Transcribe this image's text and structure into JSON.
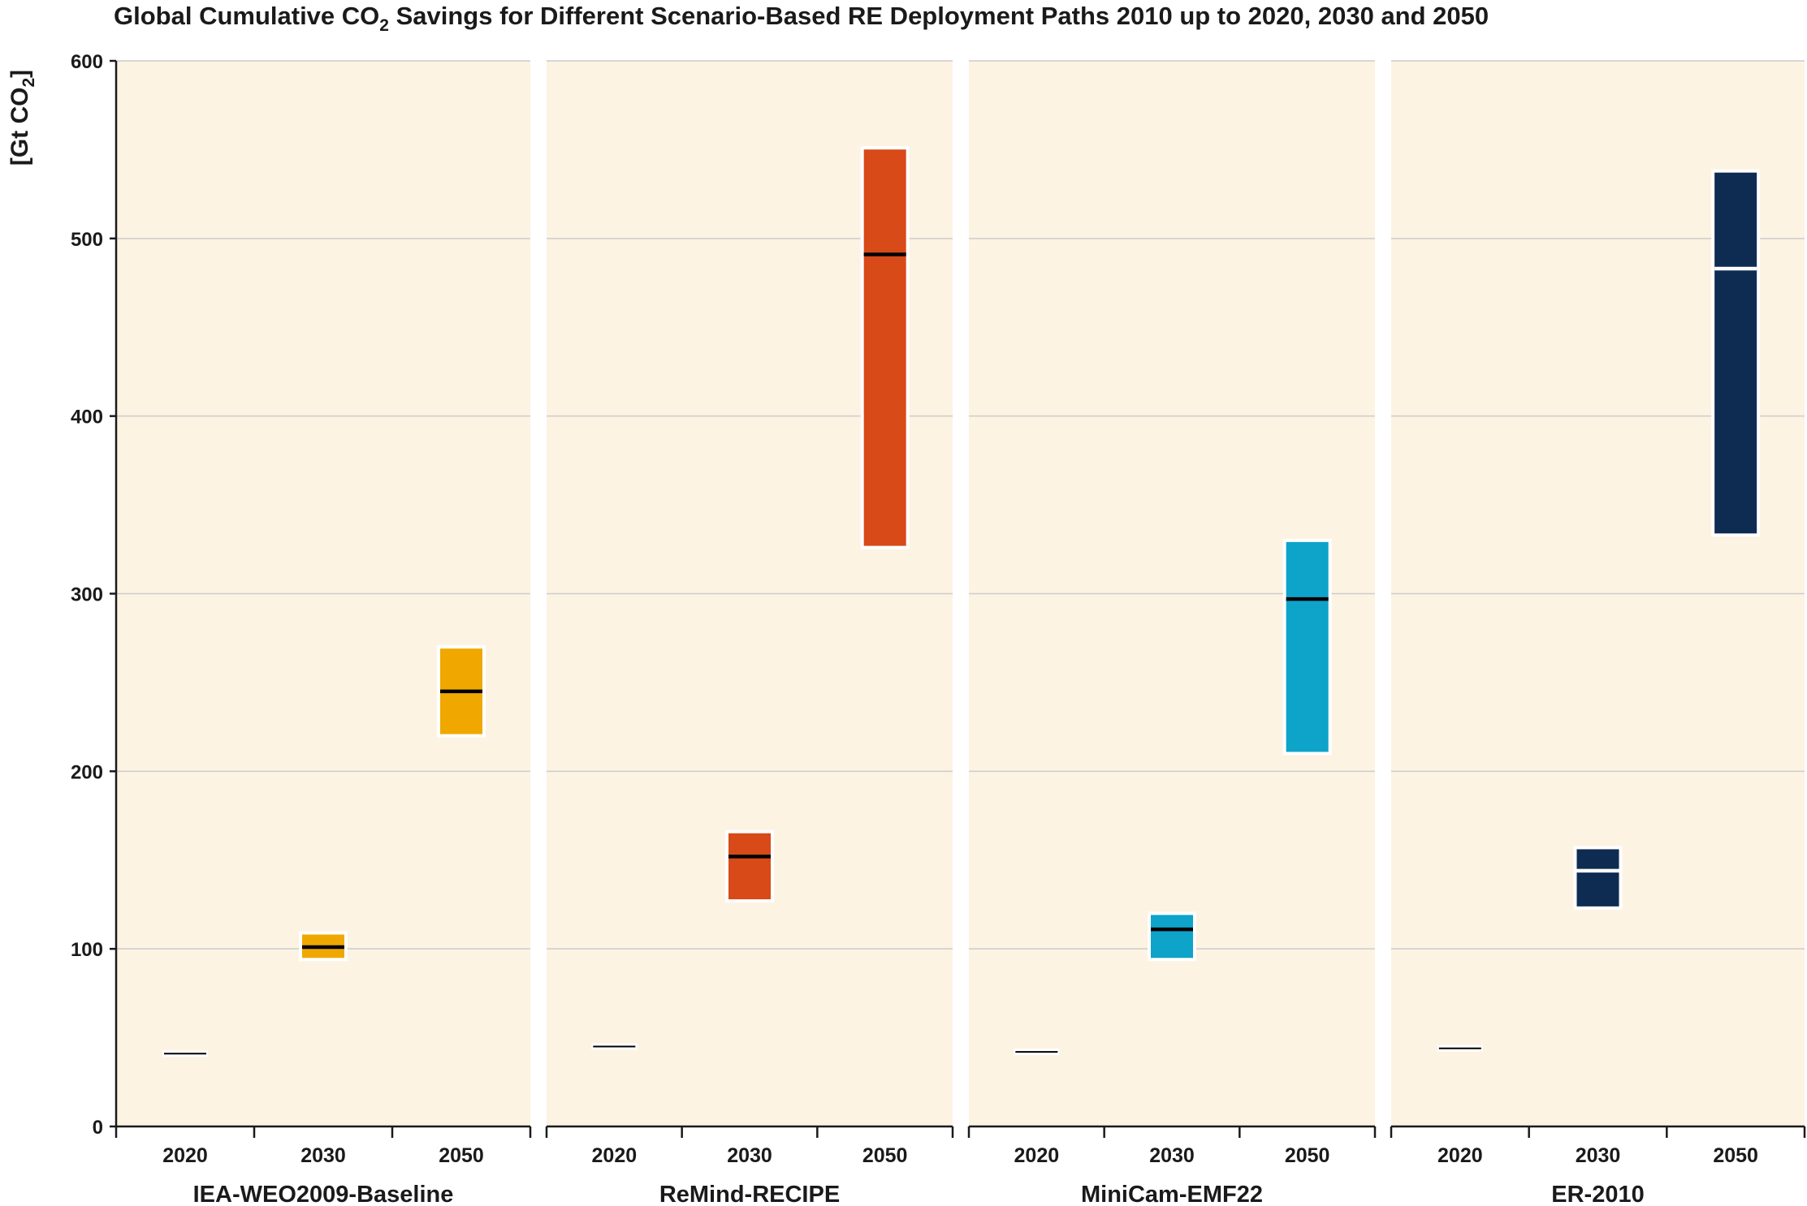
{
  "chart_data": {
    "type": "bar",
    "title": {
      "main": "Global Cumulative CO",
      "sub": "2",
      "rest": " Savings for Different Scenario-Based RE Deployment Paths 2010 up to 2020, 2030 and 2050"
    },
    "ylabel": {
      "main": "[Gt CO",
      "sub": "2",
      "end": "]"
    },
    "ylim": [
      0,
      600
    ],
    "yticks": [
      "0",
      "100",
      "200",
      "300",
      "400",
      "500",
      "600"
    ],
    "ytick_values": [
      0,
      100,
      200,
      300,
      400,
      500,
      600
    ],
    "grid": true,
    "categories": [
      "2020",
      "2030",
      "2050"
    ],
    "colors": {
      "panel_bg": "#fdf3e3",
      "grid": "#cccccc",
      "axis": "#1a1a1a"
    },
    "panels": [
      {
        "name": "IEA-WEO2009-Baseline",
        "color": "#f0a800",
        "median_color": "#000000",
        "ranges": [
          {
            "year": "2020",
            "low": 41,
            "high": 41,
            "median": 41
          },
          {
            "year": "2030",
            "low": 94,
            "high": 109,
            "median": 101
          },
          {
            "year": "2050",
            "low": 220,
            "high": 270,
            "median": 245
          }
        ]
      },
      {
        "name": "ReMind-RECIPE",
        "color": "#d84a17",
        "median_color": "#000000",
        "ranges": [
          {
            "year": "2020",
            "low": 45,
            "high": 45,
            "median": 45
          },
          {
            "year": "2030",
            "low": 127,
            "high": 166,
            "median": 152
          },
          {
            "year": "2050",
            "low": 326,
            "high": 551,
            "median": 491
          }
        ]
      },
      {
        "name": "MiniCam-EMF22",
        "color": "#0ea3c9",
        "median_color": "#000000",
        "ranges": [
          {
            "year": "2020",
            "low": 42,
            "high": 42,
            "median": 42
          },
          {
            "year": "2030",
            "low": 94,
            "high": 120,
            "median": 111
          },
          {
            "year": "2050",
            "low": 210,
            "high": 330,
            "median": 297
          }
        ]
      },
      {
        "name": "ER-2010",
        "color": "#0e2c52",
        "median_color": "#ffffff",
        "ranges": [
          {
            "year": "2020",
            "low": 44,
            "high": 44,
            "median": 44
          },
          {
            "year": "2030",
            "low": 123,
            "high": 157,
            "median": 144
          },
          {
            "year": "2050",
            "low": 333,
            "high": 538,
            "median": 483
          }
        ]
      }
    ]
  }
}
